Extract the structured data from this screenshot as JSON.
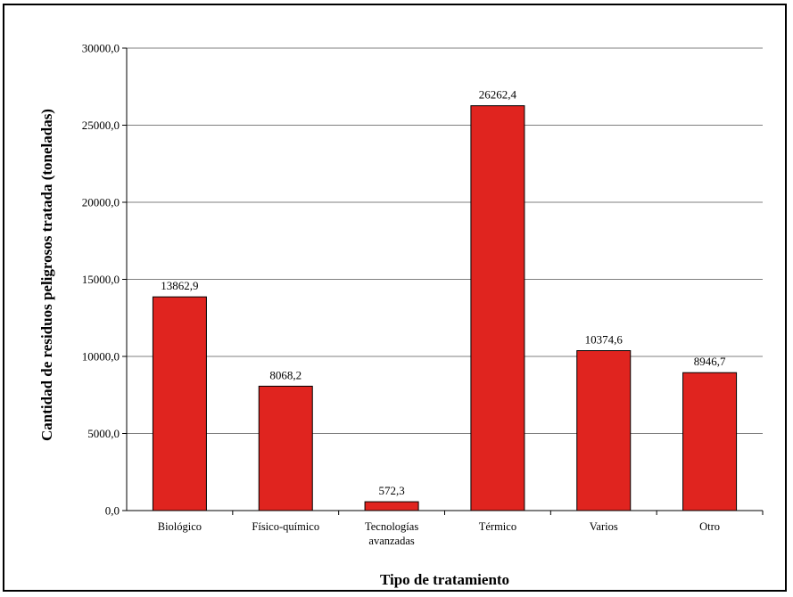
{
  "chart_data": {
    "type": "bar",
    "categories": [
      "Biológico",
      "Físico-químico",
      "Tecnologías avanzadas",
      "Térmico",
      "Varios",
      "Otro"
    ],
    "category_lines": [
      [
        "Biológico"
      ],
      [
        "Físico-químico"
      ],
      [
        "Tecnologías",
        "avanzadas"
      ],
      [
        "Térmico"
      ],
      [
        "Varios"
      ],
      [
        "Otro"
      ]
    ],
    "values": [
      13862.9,
      8068.2,
      572.3,
      26262.4,
      10374.6,
      8946.7
    ],
    "value_labels": [
      "13862,9",
      "8068,2",
      "572,3",
      "26262,4",
      "10374,6",
      "8946,7"
    ],
    "xlabel": "Tipo de tratamiento",
    "ylabel": "Cantidad de residuos peligrosos tratada (toneladas)",
    "ylim": [
      0,
      30000
    ],
    "yticks": [
      0,
      5000,
      10000,
      15000,
      20000,
      25000,
      30000
    ],
    "ytick_labels": [
      "0,0",
      "5000,0",
      "10000,0",
      "15000,0",
      "20000,0",
      "25000,0",
      "30000,0"
    ],
    "grid": true,
    "bar_color": "#e0241f",
    "gridline_color": "#7f7f7f"
  }
}
